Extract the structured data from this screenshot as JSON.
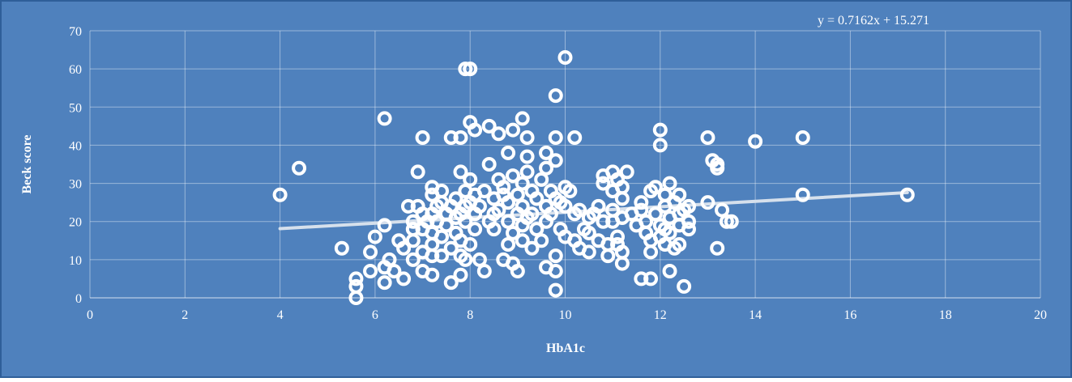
{
  "colors": {
    "background": "#4f81bd",
    "border": "#2f5f99",
    "marker": "#ffffff",
    "trendline": "#d6e0ec",
    "text": "#ffffff"
  },
  "chart_data": {
    "type": "scatter",
    "title": "",
    "xlabel": "HbA1c",
    "ylabel": "Beck score",
    "xlim": [
      0,
      20
    ],
    "ylim": [
      0,
      70
    ],
    "xticks": [
      0,
      2,
      4,
      6,
      8,
      10,
      12,
      14,
      16,
      18,
      20
    ],
    "yticks": [
      0,
      10,
      20,
      30,
      40,
      50,
      60,
      70
    ],
    "grid": true,
    "legend": "none",
    "trendline": {
      "equation": "y = 0.7162x + 15.271",
      "slope": 0.7162,
      "intercept": 15.271,
      "x_range": [
        4,
        17.2
      ]
    },
    "points": [
      [
        4.0,
        27
      ],
      [
        4.4,
        34
      ],
      [
        5.3,
        13
      ],
      [
        5.6,
        5
      ],
      [
        5.6,
        3
      ],
      [
        5.6,
        0
      ],
      [
        5.9,
        7
      ],
      [
        5.9,
        12
      ],
      [
        6.0,
        16
      ],
      [
        6.2,
        47
      ],
      [
        6.2,
        19
      ],
      [
        6.2,
        8
      ],
      [
        6.2,
        4
      ],
      [
        6.3,
        10
      ],
      [
        6.4,
        7
      ],
      [
        6.5,
        15
      ],
      [
        6.6,
        13
      ],
      [
        6.6,
        5
      ],
      [
        6.7,
        24
      ],
      [
        6.8,
        20
      ],
      [
        6.8,
        18
      ],
      [
        6.8,
        15
      ],
      [
        6.8,
        10
      ],
      [
        6.9,
        33
      ],
      [
        6.9,
        24
      ],
      [
        7.0,
        42
      ],
      [
        7.0,
        22
      ],
      [
        7.0,
        18
      ],
      [
        7.0,
        12
      ],
      [
        7.0,
        7
      ],
      [
        7.1,
        20
      ],
      [
        7.2,
        29
      ],
      [
        7.2,
        27
      ],
      [
        7.2,
        22
      ],
      [
        7.2,
        17
      ],
      [
        7.2,
        14
      ],
      [
        7.2,
        11
      ],
      [
        7.2,
        6
      ],
      [
        7.3,
        24
      ],
      [
        7.3,
        20
      ],
      [
        7.4,
        28
      ],
      [
        7.4,
        25
      ],
      [
        7.4,
        16
      ],
      [
        7.4,
        11
      ],
      [
        7.5,
        22
      ],
      [
        7.5,
        19
      ],
      [
        7.6,
        42
      ],
      [
        7.6,
        24
      ],
      [
        7.6,
        13
      ],
      [
        7.6,
        4
      ],
      [
        7.7,
        26
      ],
      [
        7.7,
        21
      ],
      [
        7.7,
        17
      ],
      [
        7.8,
        42
      ],
      [
        7.8,
        33
      ],
      [
        7.8,
        22
      ],
      [
        7.8,
        15
      ],
      [
        7.8,
        11
      ],
      [
        7.8,
        6
      ],
      [
        7.9,
        60
      ],
      [
        7.9,
        28
      ],
      [
        7.9,
        24
      ],
      [
        7.9,
        20
      ],
      [
        7.9,
        10
      ],
      [
        8.0,
        60
      ],
      [
        8.0,
        46
      ],
      [
        8.0,
        31
      ],
      [
        8.0,
        25
      ],
      [
        8.0,
        14
      ],
      [
        8.1,
        44
      ],
      [
        8.1,
        27
      ],
      [
        8.1,
        22
      ],
      [
        8.1,
        18
      ],
      [
        8.2,
        10
      ],
      [
        8.2,
        24
      ],
      [
        8.3,
        28
      ],
      [
        8.3,
        7
      ],
      [
        8.4,
        45
      ],
      [
        8.4,
        35
      ],
      [
        8.4,
        20
      ],
      [
        8.5,
        26
      ],
      [
        8.5,
        22
      ],
      [
        8.5,
        18
      ],
      [
        8.6,
        43
      ],
      [
        8.6,
        31
      ],
      [
        8.6,
        23
      ],
      [
        8.7,
        29
      ],
      [
        8.7,
        27
      ],
      [
        8.7,
        10
      ],
      [
        8.8,
        38
      ],
      [
        8.8,
        25
      ],
      [
        8.8,
        20
      ],
      [
        8.8,
        14
      ],
      [
        8.9,
        44
      ],
      [
        8.9,
        32
      ],
      [
        8.9,
        17
      ],
      [
        8.9,
        9
      ],
      [
        9.0,
        27
      ],
      [
        9.0,
        22
      ],
      [
        9.0,
        7
      ],
      [
        9.1,
        47
      ],
      [
        9.1,
        30
      ],
      [
        9.1,
        24
      ],
      [
        9.1,
        19
      ],
      [
        9.1,
        15
      ],
      [
        9.2,
        42
      ],
      [
        9.2,
        37
      ],
      [
        9.2,
        33
      ],
      [
        9.2,
        21
      ],
      [
        9.3,
        28
      ],
      [
        9.3,
        22
      ],
      [
        9.3,
        13
      ],
      [
        9.4,
        26
      ],
      [
        9.4,
        18
      ],
      [
        9.5,
        31
      ],
      [
        9.5,
        15
      ],
      [
        9.6,
        38
      ],
      [
        9.6,
        34
      ],
      [
        9.6,
        24
      ],
      [
        9.6,
        20
      ],
      [
        9.6,
        8
      ],
      [
        9.7,
        28
      ],
      [
        9.7,
        22
      ],
      [
        9.8,
        53
      ],
      [
        9.8,
        42
      ],
      [
        9.8,
        36
      ],
      [
        9.8,
        26
      ],
      [
        9.8,
        11
      ],
      [
        9.8,
        7
      ],
      [
        9.8,
        2
      ],
      [
        9.9,
        25
      ],
      [
        9.9,
        18
      ],
      [
        10.0,
        63
      ],
      [
        10.0,
        29
      ],
      [
        10.0,
        24
      ],
      [
        10.0,
        16
      ],
      [
        10.1,
        28
      ],
      [
        10.2,
        42
      ],
      [
        10.2,
        22
      ],
      [
        10.2,
        15
      ],
      [
        10.3,
        23
      ],
      [
        10.3,
        13
      ],
      [
        10.4,
        18
      ],
      [
        10.5,
        21
      ],
      [
        10.5,
        17
      ],
      [
        10.5,
        12
      ],
      [
        10.6,
        22
      ],
      [
        10.7,
        24
      ],
      [
        10.7,
        15
      ],
      [
        10.8,
        20
      ],
      [
        10.8,
        30
      ],
      [
        10.8,
        32
      ],
      [
        10.9,
        14
      ],
      [
        10.9,
        11
      ],
      [
        11.0,
        33
      ],
      [
        11.0,
        28
      ],
      [
        11.0,
        23
      ],
      [
        11.0,
        20
      ],
      [
        11.1,
        31
      ],
      [
        11.1,
        16
      ],
      [
        11.1,
        14
      ],
      [
        11.2,
        29
      ],
      [
        11.2,
        26
      ],
      [
        11.2,
        21
      ],
      [
        11.2,
        12
      ],
      [
        11.2,
        9
      ],
      [
        11.3,
        33
      ],
      [
        11.4,
        22
      ],
      [
        11.5,
        19
      ],
      [
        11.6,
        25
      ],
      [
        11.6,
        23
      ],
      [
        11.6,
        5
      ],
      [
        11.7,
        20
      ],
      [
        11.7,
        17
      ],
      [
        11.8,
        28
      ],
      [
        11.8,
        5
      ],
      [
        11.8,
        15
      ],
      [
        11.8,
        12
      ],
      [
        11.9,
        29
      ],
      [
        11.9,
        22
      ],
      [
        12.0,
        44
      ],
      [
        12.0,
        40
      ],
      [
        12.0,
        19
      ],
      [
        12.0,
        16
      ],
      [
        12.1,
        27
      ],
      [
        12.1,
        24
      ],
      [
        12.1,
        18
      ],
      [
        12.1,
        14
      ],
      [
        12.2,
        30
      ],
      [
        12.2,
        21
      ],
      [
        12.2,
        17
      ],
      [
        12.2,
        7
      ],
      [
        12.3,
        25
      ],
      [
        12.3,
        13
      ],
      [
        12.4,
        27
      ],
      [
        12.4,
        22
      ],
      [
        12.4,
        19
      ],
      [
        12.4,
        14
      ],
      [
        12.5,
        3
      ],
      [
        12.5,
        23
      ],
      [
        12.6,
        24
      ],
      [
        12.6,
        20
      ],
      [
        12.6,
        18
      ],
      [
        13.0,
        42
      ],
      [
        13.0,
        25
      ],
      [
        13.1,
        36
      ],
      [
        13.2,
        35
      ],
      [
        13.2,
        34
      ],
      [
        13.2,
        13
      ],
      [
        13.3,
        23
      ],
      [
        13.4,
        20
      ],
      [
        13.5,
        20
      ],
      [
        14.0,
        41
      ],
      [
        15.0,
        42
      ],
      [
        15.0,
        27
      ],
      [
        17.2,
        27
      ]
    ]
  }
}
